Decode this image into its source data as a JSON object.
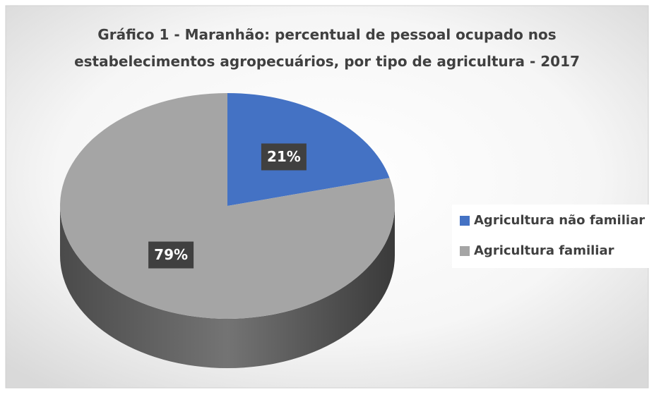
{
  "chart_data": {
    "type": "pie",
    "title": "Gráfico 1 - Maranhão: percentual de pessoal ocupado nos estabelecimentos agropecuários, por tipo de agricultura - 2017",
    "categories": [
      "Agricultura não familiar",
      "Agricultura familiar"
    ],
    "values": [
      21,
      79
    ],
    "value_labels": [
      "21%",
      "79%"
    ],
    "colors": [
      "#4472c4",
      "#a5a5a5"
    ],
    "legend": "right"
  }
}
